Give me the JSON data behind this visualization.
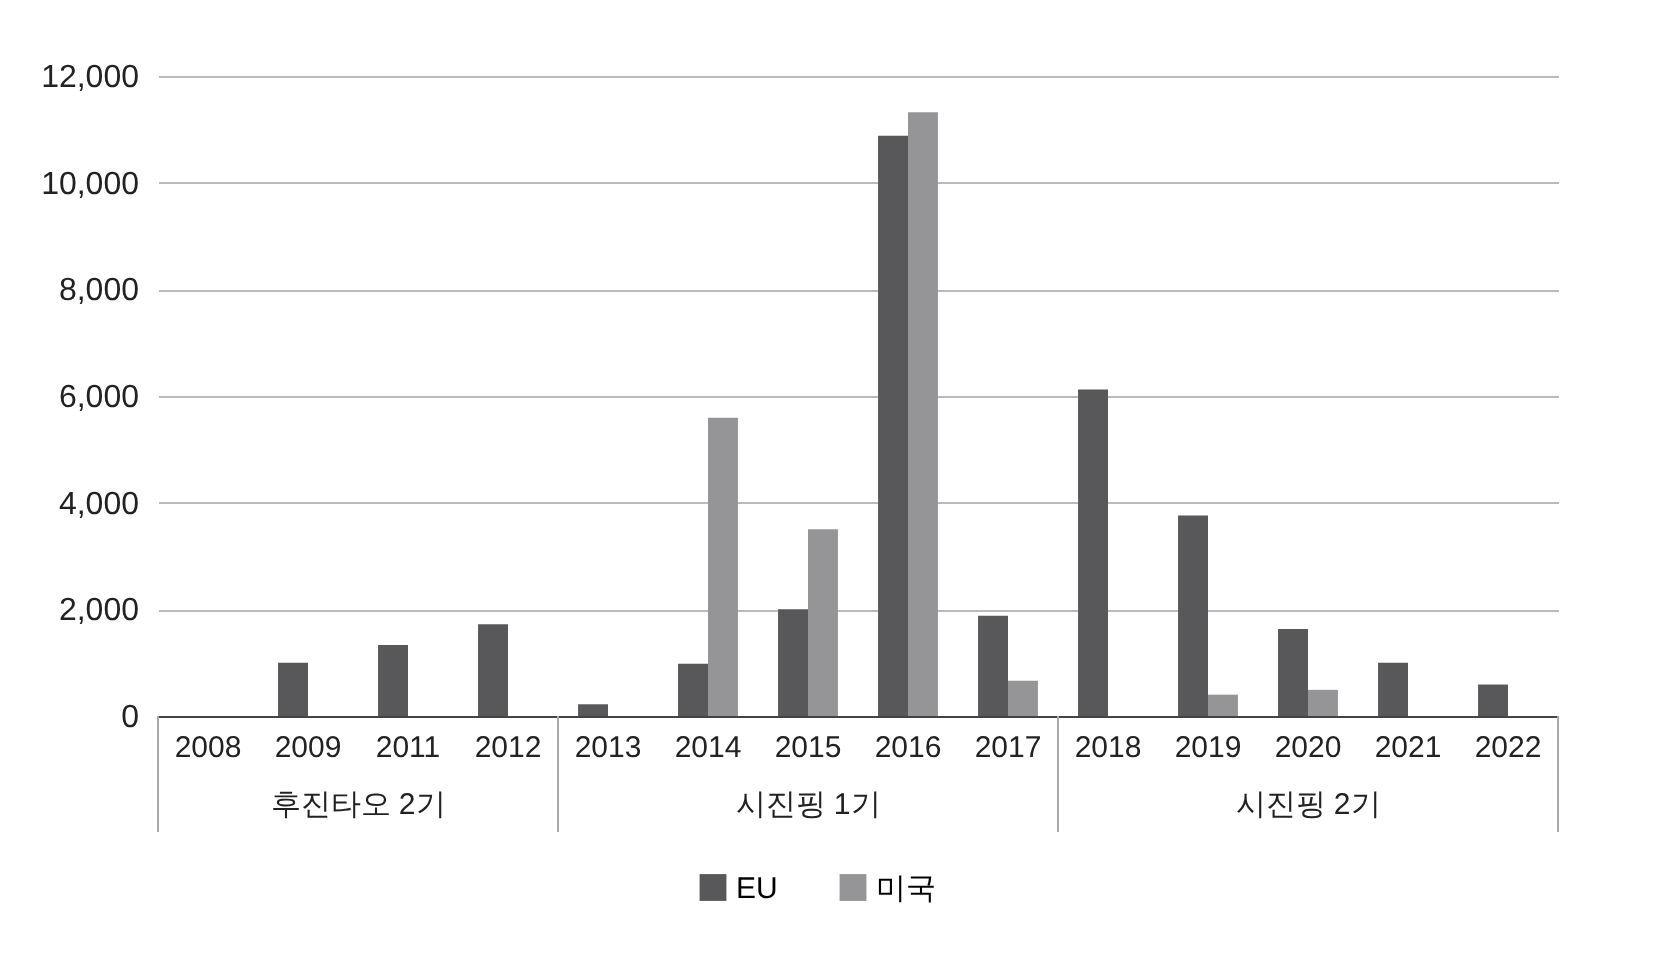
{
  "chart_data": {
    "type": "bar",
    "categories": [
      "2008",
      "2009",
      "2011",
      "2012",
      "2013",
      "2014",
      "2015",
      "2016",
      "2017",
      "2018",
      "2019",
      "2020",
      "2021",
      "2022"
    ],
    "series": [
      {
        "name": "EU",
        "color": "#58585a",
        "values": [
          0,
          1000,
          1330,
          1720,
          220,
          980,
          2000,
          10880,
          1880,
          6120,
          3760,
          1630,
          1000,
          590
        ]
      },
      {
        "name": "미국",
        "color": "#959597",
        "values": [
          null,
          null,
          null,
          null,
          null,
          5590,
          3500,
          11320,
          660,
          null,
          400,
          490,
          null,
          null
        ]
      }
    ],
    "annotations": [
      "후진타오 2기",
      "시진핑 1기",
      "시진핑 2기"
    ],
    "ylim": [
      0,
      12000
    ],
    "yticks": [
      0,
      {
        "value": 2000,
        "label": "2,000"
      },
      {
        "value": 4000,
        "label": "4,000"
      },
      {
        "value": 6000,
        "label": "6,000"
      },
      {
        "value": 8000,
        "label": "8,000"
      },
      {
        "value": 10000,
        "label": "10,000"
      },
      {
        "value": 12000,
        "label": "12,000"
      }
    ],
    "grid": "y",
    "legend": "bottom"
  }
}
